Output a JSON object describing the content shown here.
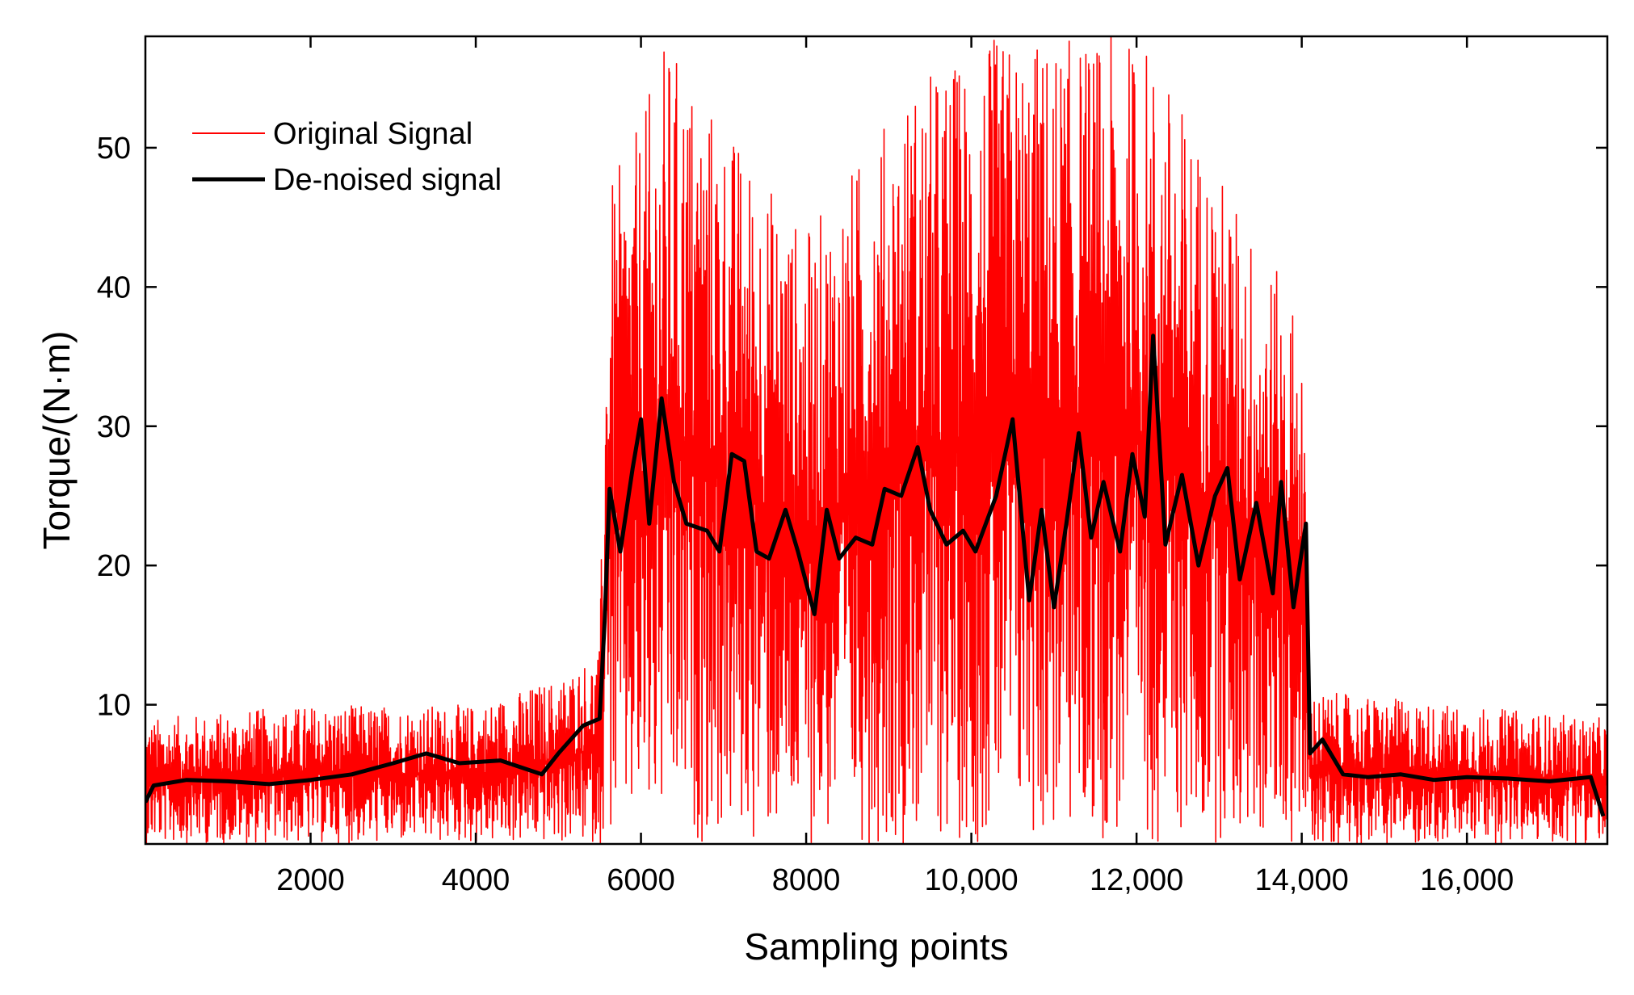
{
  "chart_data": {
    "type": "line",
    "title": "",
    "xlabel": "Sampling points",
    "ylabel": "Torque/(N·m)",
    "xlim": [
      0,
      17700
    ],
    "ylim": [
      0,
      58
    ],
    "x_ticks": [
      {
        "value": 2000,
        "label": "2000"
      },
      {
        "value": 4000,
        "label": "4000"
      },
      {
        "value": 6000,
        "label": "6000"
      },
      {
        "value": 8000,
        "label": "8000"
      },
      {
        "value": 10000,
        "label": "10,000"
      },
      {
        "value": 12000,
        "label": "12,000"
      },
      {
        "value": 14000,
        "label": "14,000"
      },
      {
        "value": 16000,
        "label": "16,000"
      }
    ],
    "y_ticks": [
      {
        "value": 10,
        "label": "10"
      },
      {
        "value": 20,
        "label": "20"
      },
      {
        "value": 30,
        "label": "30"
      },
      {
        "value": 40,
        "label": "40"
      },
      {
        "value": 50,
        "label": "50"
      }
    ],
    "legend": {
      "position": "top-left",
      "entries": [
        {
          "label": "Original Signal",
          "color": "#ff0000"
        },
        {
          "label": "De-noised signal",
          "color": "#000000"
        }
      ]
    },
    "series": [
      {
        "name": "Original Signal",
        "color": "#ff0000",
        "envelope": [
          {
            "x": 0,
            "low": 0,
            "high": 9
          },
          {
            "x": 2000,
            "low": 0,
            "high": 10
          },
          {
            "x": 4000,
            "low": 0,
            "high": 10
          },
          {
            "x": 5000,
            "low": 0,
            "high": 12
          },
          {
            "x": 5500,
            "low": 0,
            "high": 14
          },
          {
            "x": 5600,
            "low": 0,
            "high": 47
          },
          {
            "x": 6000,
            "low": 0,
            "high": 52
          },
          {
            "x": 6300,
            "low": 0,
            "high": 58
          },
          {
            "x": 8000,
            "low": 0,
            "high": 44
          },
          {
            "x": 9300,
            "low": 0,
            "high": 55
          },
          {
            "x": 10300,
            "low": 0,
            "high": 58
          },
          {
            "x": 12100,
            "low": 0,
            "high": 58
          },
          {
            "x": 14000,
            "low": 0,
            "high": 38
          },
          {
            "x": 14100,
            "low": 0,
            "high": 11
          },
          {
            "x": 17700,
            "low": 0,
            "high": 9
          }
        ]
      },
      {
        "name": "De-noised signal",
        "color": "#000000",
        "points": [
          [
            0,
            3
          ],
          [
            100,
            4.2
          ],
          [
            500,
            4.6
          ],
          [
            1000,
            4.5
          ],
          [
            1500,
            4.3
          ],
          [
            2000,
            4.6
          ],
          [
            2500,
            5.0
          ],
          [
            3000,
            5.8
          ],
          [
            3400,
            6.5
          ],
          [
            3800,
            5.8
          ],
          [
            4300,
            6.0
          ],
          [
            4800,
            5.0
          ],
          [
            5000,
            6.5
          ],
          [
            5300,
            8.5
          ],
          [
            5500,
            9.0
          ],
          [
            5560,
            16
          ],
          [
            5620,
            25.5
          ],
          [
            5750,
            21
          ],
          [
            5900,
            27
          ],
          [
            6000,
            30.5
          ],
          [
            6100,
            23
          ],
          [
            6250,
            32
          ],
          [
            6400,
            26
          ],
          [
            6550,
            23
          ],
          [
            6800,
            22.5
          ],
          [
            6950,
            21
          ],
          [
            7100,
            28
          ],
          [
            7250,
            27.5
          ],
          [
            7400,
            21
          ],
          [
            7550,
            20.5
          ],
          [
            7750,
            24
          ],
          [
            7900,
            21
          ],
          [
            8100,
            16.5
          ],
          [
            8250,
            24
          ],
          [
            8400,
            20.5
          ],
          [
            8600,
            22
          ],
          [
            8800,
            21.5
          ],
          [
            8950,
            25.5
          ],
          [
            9150,
            25
          ],
          [
            9350,
            28.5
          ],
          [
            9500,
            24
          ],
          [
            9700,
            21.5
          ],
          [
            9900,
            22.5
          ],
          [
            10050,
            21
          ],
          [
            10300,
            25
          ],
          [
            10500,
            30.5
          ],
          [
            10700,
            17.5
          ],
          [
            10850,
            24
          ],
          [
            11000,
            17
          ],
          [
            11150,
            23
          ],
          [
            11300,
            29.5
          ],
          [
            11450,
            22
          ],
          [
            11600,
            26
          ],
          [
            11800,
            21
          ],
          [
            11950,
            28
          ],
          [
            12100,
            23.5
          ],
          [
            12200,
            36.5
          ],
          [
            12350,
            21.5
          ],
          [
            12550,
            26.5
          ],
          [
            12750,
            20
          ],
          [
            12950,
            25
          ],
          [
            13100,
            27
          ],
          [
            13250,
            19
          ],
          [
            13450,
            24.5
          ],
          [
            13650,
            18
          ],
          [
            13750,
            26
          ],
          [
            13900,
            17
          ],
          [
            14050,
            23
          ],
          [
            14100,
            6.5
          ],
          [
            14250,
            7.5
          ],
          [
            14500,
            5
          ],
          [
            14800,
            4.8
          ],
          [
            15200,
            5.0
          ],
          [
            15600,
            4.6
          ],
          [
            16000,
            4.8
          ],
          [
            16500,
            4.7
          ],
          [
            17000,
            4.5
          ],
          [
            17500,
            4.8
          ],
          [
            17650,
            2
          ]
        ]
      }
    ]
  }
}
